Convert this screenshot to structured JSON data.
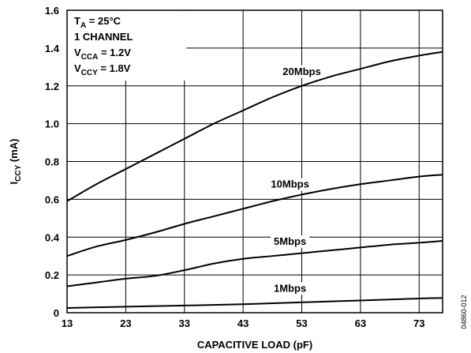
{
  "chart_data": {
    "type": "line",
    "xlabel": "CAPACITIVE LOAD (pF)",
    "ylabel": {
      "main": "I",
      "sub": "CCY",
      "suffix": " (mA)"
    },
    "xlim": [
      13,
      77
    ],
    "ylim": [
      0,
      1.6
    ],
    "x_ticks": [
      "13",
      "23",
      "33",
      "43",
      "53",
      "63",
      "73"
    ],
    "y_ticks": [
      "0",
      "0.2",
      "0.4",
      "0.6",
      "0.8",
      "1.0",
      "1.2",
      "1.4",
      "1.6"
    ],
    "grid": true,
    "conditions": [
      {
        "main": "T",
        "sub": "A",
        "rest": " = 25°C"
      },
      {
        "main": "1 CHANNEL",
        "sub": "",
        "rest": ""
      },
      {
        "main": "V",
        "sub": "CCA",
        "rest": " = 1.2V"
      },
      {
        "main": "V",
        "sub": "CCY",
        "rest": " = 1.8V"
      }
    ],
    "series": [
      {
        "name": "20Mbps",
        "x": [
          13,
          18,
          23,
          28,
          33,
          38,
          43,
          48,
          53,
          58,
          63,
          68,
          73,
          77
        ],
        "y": [
          0.59,
          0.68,
          0.76,
          0.84,
          0.92,
          1.0,
          1.07,
          1.14,
          1.2,
          1.25,
          1.29,
          1.33,
          1.36,
          1.38
        ]
      },
      {
        "name": "10Mbps",
        "x": [
          13,
          18,
          23,
          28,
          33,
          38,
          43,
          48,
          53,
          58,
          63,
          68,
          73,
          77
        ],
        "y": [
          0.3,
          0.35,
          0.385,
          0.425,
          0.47,
          0.51,
          0.55,
          0.59,
          0.625,
          0.655,
          0.68,
          0.7,
          0.72,
          0.73
        ]
      },
      {
        "name": "5Mbps",
        "x": [
          13,
          18,
          23,
          28,
          33,
          38,
          43,
          48,
          53,
          58,
          63,
          68,
          73,
          77
        ],
        "y": [
          0.14,
          0.16,
          0.18,
          0.195,
          0.225,
          0.26,
          0.285,
          0.3,
          0.315,
          0.33,
          0.345,
          0.36,
          0.37,
          0.38
        ]
      },
      {
        "name": "1Mbps",
        "x": [
          13,
          23,
          33,
          43,
          53,
          63,
          73,
          77
        ],
        "y": [
          0.025,
          0.032,
          0.038,
          0.045,
          0.055,
          0.065,
          0.075,
          0.078
        ]
      }
    ],
    "figure_id": "04860-012"
  }
}
